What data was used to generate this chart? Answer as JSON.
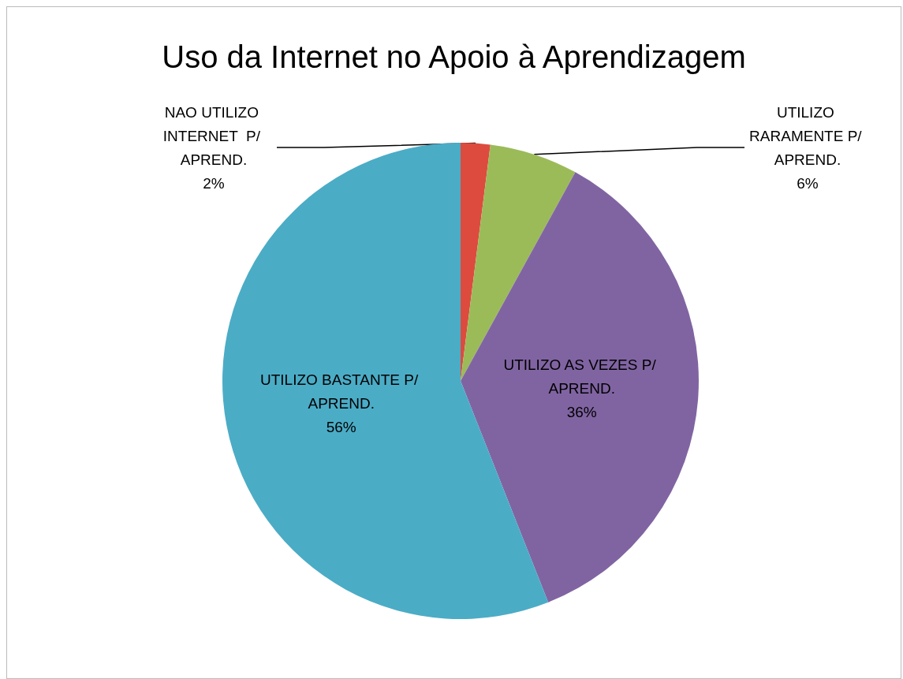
{
  "chart_data": {
    "type": "pie",
    "title": "Uso da Internet no Apoio à Aprendizagem",
    "categories": [
      "NAO UTILIZO INTERNET  P/ APREND.",
      "UTILIZO RARAMENTE P/ APREND.",
      "UTILIZO AS VEZES P/ APREND.",
      "UTILIZO BASTANTE P/ APREND."
    ],
    "values": [
      2,
      6,
      36,
      56
    ],
    "value_labels": [
      "2%",
      "6%",
      "36%",
      "56%"
    ],
    "colors": [
      "#dd4b3f",
      "#9bbb59",
      "#8064a2",
      "#4bacc6"
    ],
    "legend": false
  }
}
